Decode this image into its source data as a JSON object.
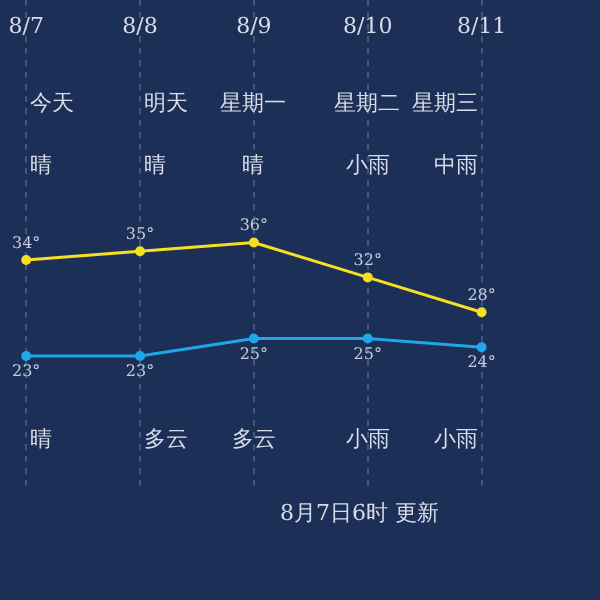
{
  "chart_data": {
    "type": "line",
    "categories": [
      "8/7",
      "8/8",
      "8/9",
      "8/10",
      "8/11"
    ],
    "series": [
      {
        "color": "#f5e020",
        "values": [
          34,
          35,
          36,
          32,
          28
        ],
        "value_labels": [
          "34°",
          "35°",
          "36°",
          "32°",
          "28°"
        ]
      },
      {
        "color": "#1ea8e8",
        "values": [
          23,
          23,
          25,
          25,
          24
        ],
        "value_labels": [
          "23°",
          "23°",
          "25°",
          "25°",
          "24°"
        ]
      }
    ],
    "ylim": [
      7.4,
      63.8
    ],
    "grid": "x",
    "marker": "circle",
    "tick_labels": "x",
    "annotations": [
      "今天",
      "明天",
      "星期一",
      "星期二",
      "星期三",
      "晴",
      "晴",
      "晴",
      "小雨",
      "中雨",
      "晴",
      "多云",
      "多云",
      "小雨",
      "小雨",
      "8月7日6时 更新"
    ]
  }
}
